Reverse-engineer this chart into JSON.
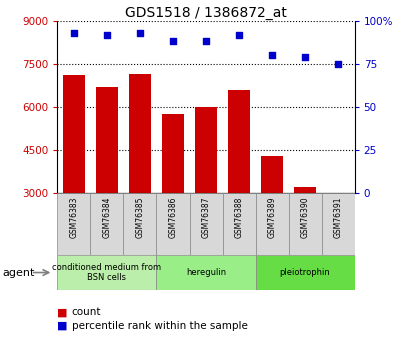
{
  "title": "GDS1518 / 1386872_at",
  "categories": [
    "GSM76383",
    "GSM76384",
    "GSM76385",
    "GSM76386",
    "GSM76387",
    "GSM76388",
    "GSM76389",
    "GSM76390",
    "GSM76391"
  ],
  "bar_values": [
    7100,
    6700,
    7150,
    5750,
    6000,
    6600,
    4300,
    3200,
    3000
  ],
  "percentile_values": [
    93,
    92,
    93,
    88,
    88,
    92,
    80,
    79,
    75
  ],
  "bar_color": "#cc0000",
  "point_color": "#0000cc",
  "ylim_left": [
    3000,
    9000
  ],
  "ylim_right": [
    0,
    100
  ],
  "yticks_left": [
    3000,
    4500,
    6000,
    7500,
    9000
  ],
  "yticks_right": [
    0,
    25,
    50,
    75,
    100
  ],
  "yticklabels_right": [
    "0",
    "25",
    "50",
    "75",
    "100%"
  ],
  "groups": [
    {
      "label": "conditioned medium from\nBSN cells",
      "start": 0,
      "end": 3,
      "color": "#bbeeaa"
    },
    {
      "label": "heregulin",
      "start": 3,
      "end": 6,
      "color": "#99ee88"
    },
    {
      "label": "pleiotrophin",
      "start": 6,
      "end": 9,
      "color": "#66dd44"
    }
  ],
  "agent_label": "agent",
  "legend_count_label": "count",
  "legend_pct_label": "percentile rank within the sample",
  "bar_baseline": 3000,
  "sample_box_color": "#d8d8d8"
}
